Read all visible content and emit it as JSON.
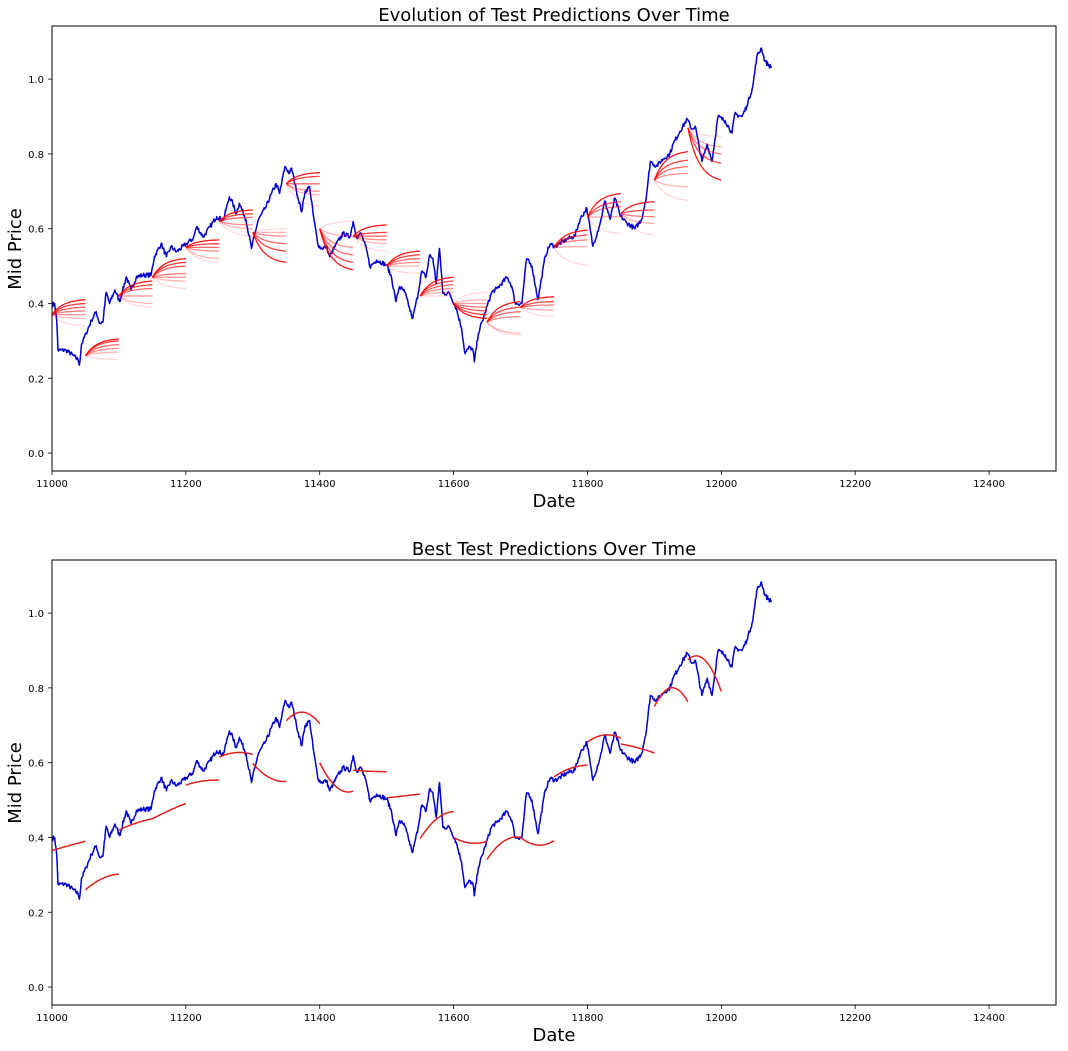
{
  "chart_data": [
    {
      "type": "line",
      "title": "Evolution of Test Predictions Over Time",
      "xlabel": "Date",
      "ylabel": "Mid Price",
      "xlim": [
        11000,
        12500
      ],
      "ylim": [
        -0.048,
        1.142
      ],
      "xticks": [
        "11000",
        "11200",
        "11400",
        "11600",
        "11800",
        "12000",
        "12200",
        "12400"
      ],
      "yticks": [
        "0.0",
        "0.2",
        "0.4",
        "0.6",
        "0.8",
        "1.0"
      ],
      "grid": false,
      "colors": {
        "actual": "#0000cd",
        "prediction": "#ff0000"
      },
      "actual": {
        "name": "Mid Price",
        "x": [
          11000,
          11004,
          11007,
          11009,
          11021,
          11031,
          11039,
          11041,
          11044,
          11051,
          11059,
          11066,
          11071,
          11076,
          11081,
          11086,
          11094,
          11101,
          11111,
          11118,
          11126,
          11136,
          11148,
          11153,
          11163,
          11171,
          11178,
          11186,
          11201,
          11211,
          11216,
          11226,
          11236,
          11246,
          11256,
          11265,
          11270,
          11275,
          11280,
          11290,
          11298,
          11308,
          11320,
          11328,
          11335,
          11340,
          11348,
          11355,
          11358,
          11365,
          11373,
          11378,
          11385,
          11390,
          11397,
          11402,
          11410,
          11415,
          11425,
          11435,
          11445,
          11450,
          11455,
          11462,
          11470,
          11475,
          11485,
          11500,
          11507,
          11514,
          11519,
          11527,
          11537,
          11539,
          11547,
          11552,
          11559,
          11564,
          11569,
          11574,
          11579,
          11584,
          11594,
          11604,
          11612,
          11617,
          11624,
          11629,
          11631,
          11637,
          11647,
          11657,
          11665,
          11680,
          11687,
          11692,
          11702,
          11709,
          11717,
          11726,
          11737,
          11744,
          11752,
          11769,
          11781,
          11789,
          11799,
          11808,
          11819,
          11826,
          11834,
          11841,
          11849,
          11859,
          11871,
          11881,
          11888,
          11894,
          11903,
          11913,
          11923,
          11928,
          11938,
          11949,
          11956,
          11961,
          11971,
          11979,
          11986,
          11995,
          12006,
          12016,
          12020,
          12031,
          12038,
          12047,
          12053,
          12060,
          12065,
          12075
        ],
        "y": [
          0.396,
          0.4,
          0.355,
          0.275,
          0.275,
          0.262,
          0.249,
          0.235,
          0.29,
          0.32,
          0.355,
          0.378,
          0.347,
          0.35,
          0.43,
          0.4,
          0.436,
          0.405,
          0.471,
          0.436,
          0.471,
          0.476,
          0.476,
          0.525,
          0.56,
          0.525,
          0.552,
          0.538,
          0.56,
          0.574,
          0.605,
          0.578,
          0.605,
          0.632,
          0.623,
          0.685,
          0.668,
          0.64,
          0.668,
          0.623,
          0.547,
          0.623,
          0.659,
          0.694,
          0.72,
          0.694,
          0.766,
          0.748,
          0.762,
          0.703,
          0.645,
          0.699,
          0.712,
          0.641,
          0.56,
          0.547,
          0.552,
          0.525,
          0.56,
          0.587,
          0.578,
          0.619,
          0.578,
          0.587,
          0.543,
          0.498,
          0.516,
          0.503,
          0.471,
          0.405,
          0.445,
          0.431,
          0.369,
          0.36,
          0.427,
          0.485,
          0.471,
          0.529,
          0.52,
          0.454,
          0.547,
          0.427,
          0.427,
          0.387,
          0.333,
          0.266,
          0.284,
          0.275,
          0.244,
          0.32,
          0.375,
          0.43,
          0.44,
          0.47,
          0.446,
          0.4,
          0.4,
          0.52,
          0.5,
          0.41,
          0.527,
          0.558,
          0.553,
          0.572,
          0.58,
          0.625,
          0.655,
          0.553,
          0.615,
          0.674,
          0.625,
          0.682,
          0.634,
          0.615,
          0.6,
          0.625,
          0.687,
          0.78,
          0.767,
          0.786,
          0.8,
          0.826,
          0.86,
          0.893,
          0.866,
          0.874,
          0.78,
          0.826,
          0.78,
          0.9,
          0.888,
          0.856,
          0.906,
          0.9,
          0.928,
          0.98,
          1.06,
          1.083,
          1.048,
          1.03
        ]
      },
      "prediction_windows": [
        {
          "start_x": 11000,
          "start": 0.37,
          "ends": [
            0.34,
            0.36,
            0.37,
            0.38,
            0.39,
            0.4,
            0.41
          ]
        },
        {
          "start_x": 11050,
          "start": 0.26,
          "ends": [
            0.25,
            0.27,
            0.28,
            0.29,
            0.3,
            0.305
          ]
        },
        {
          "start_x": 11100,
          "start": 0.42,
          "ends": [
            0.39,
            0.4,
            0.42,
            0.44,
            0.45,
            0.46
          ]
        },
        {
          "start_x": 11150,
          "start": 0.47,
          "ends": [
            0.44,
            0.46,
            0.47,
            0.48,
            0.5,
            0.51,
            0.52
          ]
        },
        {
          "start_x": 11200,
          "start": 0.55,
          "ends": [
            0.51,
            0.52,
            0.54,
            0.55,
            0.56,
            0.57
          ]
        },
        {
          "start_x": 11250,
          "start": 0.62,
          "ends": [
            0.58,
            0.6,
            0.61,
            0.63,
            0.64,
            0.65
          ]
        },
        {
          "start_x": 11300,
          "start": 0.59,
          "ends": [
            0.6,
            0.59,
            0.58,
            0.56,
            0.54,
            0.51
          ]
        },
        {
          "start_x": 11350,
          "start": 0.72,
          "ends": [
            0.66,
            0.69,
            0.7,
            0.72,
            0.74,
            0.75
          ]
        },
        {
          "start_x": 11400,
          "start": 0.6,
          "ends": [
            0.62,
            0.58,
            0.55,
            0.53,
            0.51,
            0.49
          ]
        },
        {
          "start_x": 11450,
          "start": 0.58,
          "ends": [
            0.54,
            0.56,
            0.57,
            0.58,
            0.59,
            0.61
          ]
        },
        {
          "start_x": 11500,
          "start": 0.5,
          "ends": [
            0.48,
            0.5,
            0.51,
            0.52,
            0.53,
            0.54
          ]
        },
        {
          "start_x": 11550,
          "start": 0.42,
          "ends": [
            0.42,
            0.43,
            0.44,
            0.45,
            0.46,
            0.47
          ]
        },
        {
          "start_x": 11600,
          "start": 0.4,
          "ends": [
            0.43,
            0.41,
            0.4,
            0.39,
            0.38,
            0.37,
            0.36
          ]
        },
        {
          "start_x": 11650,
          "start": 0.35,
          "ends": [
            0.315,
            0.32,
            0.365,
            0.378,
            0.39,
            0.405
          ]
        },
        {
          "start_x": 11700,
          "start": 0.39,
          "ends": [
            0.365,
            0.382,
            0.396,
            0.405,
            0.418
          ]
        },
        {
          "start_x": 11750,
          "start": 0.55,
          "ends": [
            0.503,
            0.552,
            0.57,
            0.583,
            0.596
          ]
        },
        {
          "start_x": 11800,
          "start": 0.63,
          "ends": [
            0.587,
            0.632,
            0.659,
            0.672,
            0.694
          ]
        },
        {
          "start_x": 11850,
          "start": 0.64,
          "ends": [
            0.583,
            0.614,
            0.632,
            0.65,
            0.672
          ]
        },
        {
          "start_x": 11900,
          "start": 0.73,
          "ends": [
            0.676,
            0.712,
            0.748,
            0.766,
            0.783,
            0.806
          ]
        },
        {
          "start_x": 11950,
          "start": 0.87,
          "ends": [
            0.846,
            0.819,
            0.8,
            0.775,
            0.73
          ]
        }
      ]
    },
    {
      "type": "line",
      "title": "Best Test Predictions Over Time",
      "xlabel": "Date",
      "ylabel": "Mid Price",
      "xlim": [
        11000,
        12500
      ],
      "ylim": [
        -0.048,
        1.142
      ],
      "xticks": [
        "11000",
        "11200",
        "11400",
        "11600",
        "11800",
        "12000",
        "12200",
        "12400"
      ],
      "yticks": [
        "0.0",
        "0.2",
        "0.4",
        "0.6",
        "0.8",
        "1.0"
      ],
      "grid": false,
      "colors": {
        "actual": "#0000cd",
        "prediction": "#e0201c"
      },
      "actual_same_as": "chart 1 mid price series",
      "best_predictions": [
        {
          "start_x": 11000,
          "y": [
            0.365,
            0.378,
            0.39
          ]
        },
        {
          "start_x": 11050,
          "y": [
            0.26,
            0.29,
            0.302
          ]
        },
        {
          "start_x": 11100,
          "y": [
            0.42,
            0.438,
            0.45
          ]
        },
        {
          "start_x": 11150,
          "y": [
            0.45,
            0.472,
            0.491
          ]
        },
        {
          "start_x": 11200,
          "y": [
            0.54,
            0.551,
            0.553
          ]
        },
        {
          "start_x": 11250,
          "y": [
            0.615,
            0.627,
            0.622
          ]
        },
        {
          "start_x": 11300,
          "y": [
            0.598,
            0.56,
            0.55
          ]
        },
        {
          "start_x": 11350,
          "y": [
            0.712,
            0.735,
            0.704
          ]
        },
        {
          "start_x": 11400,
          "y": [
            0.6,
            0.535,
            0.524
          ]
        },
        {
          "start_x": 11450,
          "y": [
            0.58,
            0.577,
            0.576
          ]
        },
        {
          "start_x": 11500,
          "y": [
            0.506,
            0.511,
            0.516
          ]
        },
        {
          "start_x": 11550,
          "y": [
            0.397,
            0.45,
            0.469
          ]
        },
        {
          "start_x": 11600,
          "y": [
            0.4,
            0.385,
            0.39
          ]
        },
        {
          "start_x": 11650,
          "y": [
            0.341,
            0.39,
            0.4
          ]
        },
        {
          "start_x": 11700,
          "y": [
            0.4,
            0.38,
            0.391
          ]
        },
        {
          "start_x": 11750,
          "y": [
            0.562,
            0.585,
            0.593
          ]
        },
        {
          "start_x": 11800,
          "y": [
            0.655,
            0.674,
            0.665
          ]
        },
        {
          "start_x": 11850,
          "y": [
            0.65,
            0.64,
            0.626
          ]
        },
        {
          "start_x": 11900,
          "y": [
            0.75,
            0.8,
            0.763
          ]
        },
        {
          "start_x": 11950,
          "y": [
            0.875,
            0.875,
            0.79
          ]
        }
      ]
    }
  ]
}
